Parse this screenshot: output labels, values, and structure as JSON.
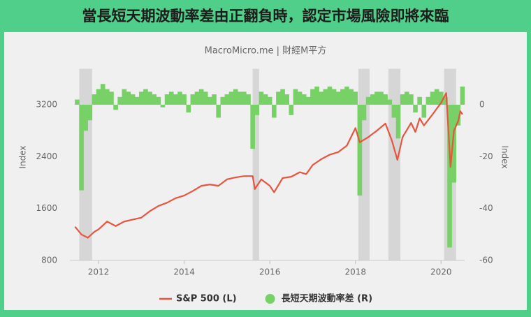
{
  "chart_data": {
    "type": "line",
    "title": "當長短天期波動率差由正翻負時，認定市場風險即將來臨",
    "subtitle": "MacroMicro.me | 財經M平方",
    "y_label": "Index",
    "y2_label": "Index",
    "xlim": [
      2011.33,
      2020.55
    ],
    "xticks": [
      2012,
      2014,
      2016,
      2018,
      2020
    ],
    "ylim": [
      800,
      3700
    ],
    "yticks": [
      800,
      1600,
      2400,
      3200
    ],
    "y2lim": [
      -60,
      12.5
    ],
    "y2ticks": [
      -60,
      -40,
      -20,
      0
    ],
    "grid": false,
    "legend": "bottom",
    "shaded_periods": [
      [
        2011.55,
        2011.85
      ],
      [
        2015.6,
        2015.75
      ],
      [
        2018.07,
        2018.33
      ],
      [
        2018.77,
        2019.05
      ],
      [
        2020.07,
        2020.35
      ]
    ],
    "series": [
      {
        "name": "S&P 500 (L)",
        "color": "#e8553e",
        "type": "line",
        "x": [
          2011.45,
          2011.6,
          2011.75,
          2011.9,
          2012.0,
          2012.2,
          2012.4,
          2012.6,
          2012.8,
          2013.0,
          2013.2,
          2013.4,
          2013.6,
          2013.8,
          2014.0,
          2014.2,
          2014.4,
          2014.6,
          2014.8,
          2015.0,
          2015.2,
          2015.4,
          2015.6,
          2015.65,
          2015.8,
          2016.0,
          2016.1,
          2016.3,
          2016.5,
          2016.7,
          2016.85,
          2017.0,
          2017.2,
          2017.4,
          2017.6,
          2017.8,
          2018.0,
          2018.1,
          2018.3,
          2018.5,
          2018.7,
          2018.85,
          2018.98,
          2019.1,
          2019.3,
          2019.4,
          2019.5,
          2019.6,
          2019.8,
          2020.0,
          2020.12,
          2020.2,
          2020.22,
          2020.3,
          2020.4,
          2020.45,
          2020.5
        ],
        "values": [
          1320,
          1200,
          1150,
          1240,
          1280,
          1400,
          1330,
          1400,
          1430,
          1460,
          1560,
          1640,
          1690,
          1760,
          1800,
          1870,
          1950,
          1970,
          1950,
          2050,
          2080,
          2100,
          2100,
          1900,
          2050,
          1950,
          1850,
          2070,
          2090,
          2160,
          2130,
          2270,
          2360,
          2430,
          2470,
          2570,
          2840,
          2620,
          2700,
          2800,
          2910,
          2650,
          2350,
          2700,
          2920,
          2780,
          2990,
          2880,
          3050,
          3230,
          3380,
          2480,
          2240,
          2800,
          2950,
          3100,
          3050
        ]
      },
      {
        "name": "長短天期波動率差 (R)",
        "color": "#78d167",
        "type": "bar",
        "axis": "y2",
        "x": [
          2011.5,
          2011.6,
          2011.7,
          2011.8,
          2011.9,
          2012.0,
          2012.1,
          2012.2,
          2012.3,
          2012.4,
          2012.5,
          2012.6,
          2012.7,
          2012.8,
          2012.9,
          2013.0,
          2013.1,
          2013.2,
          2013.3,
          2013.4,
          2013.5,
          2013.6,
          2013.7,
          2013.8,
          2013.9,
          2014.0,
          2014.1,
          2014.2,
          2014.3,
          2014.4,
          2014.5,
          2014.6,
          2014.7,
          2014.8,
          2014.9,
          2015.0,
          2015.1,
          2015.2,
          2015.3,
          2015.4,
          2015.5,
          2015.6,
          2015.7,
          2015.8,
          2015.9,
          2016.0,
          2016.1,
          2016.2,
          2016.3,
          2016.4,
          2016.5,
          2016.6,
          2016.7,
          2016.8,
          2016.9,
          2017.0,
          2017.1,
          2017.2,
          2017.3,
          2017.4,
          2017.5,
          2017.6,
          2017.7,
          2017.8,
          2017.9,
          2018.0,
          2018.1,
          2018.2,
          2018.3,
          2018.4,
          2018.5,
          2018.6,
          2018.7,
          2018.8,
          2018.9,
          2019.0,
          2019.1,
          2019.2,
          2019.3,
          2019.4,
          2019.5,
          2019.6,
          2019.7,
          2019.8,
          2019.9,
          2020.0,
          2020.1,
          2020.2,
          2020.3,
          2020.4,
          2020.5
        ],
        "values": [
          2,
          -33,
          -10,
          -6,
          4,
          6,
          8,
          6,
          5,
          -2,
          3,
          6,
          5,
          4,
          3,
          5,
          6,
          5,
          4,
          3,
          -1,
          4,
          5,
          4,
          5,
          4,
          -3,
          4,
          5,
          6,
          5,
          3,
          4,
          -5,
          3,
          4,
          5,
          6,
          5,
          5,
          4,
          -17,
          -4,
          5,
          4,
          3,
          -5,
          5,
          6,
          4,
          -4,
          6,
          5,
          4,
          3,
          6,
          7,
          5,
          6,
          7,
          6,
          5,
          6,
          7,
          6,
          5,
          -35,
          -6,
          3,
          4,
          5,
          5,
          4,
          2,
          -5,
          -13,
          4,
          5,
          4,
          -3,
          3,
          -5,
          3,
          5,
          6,
          5,
          3,
          -55,
          -30,
          -8,
          7
        ]
      }
    ]
  }
}
